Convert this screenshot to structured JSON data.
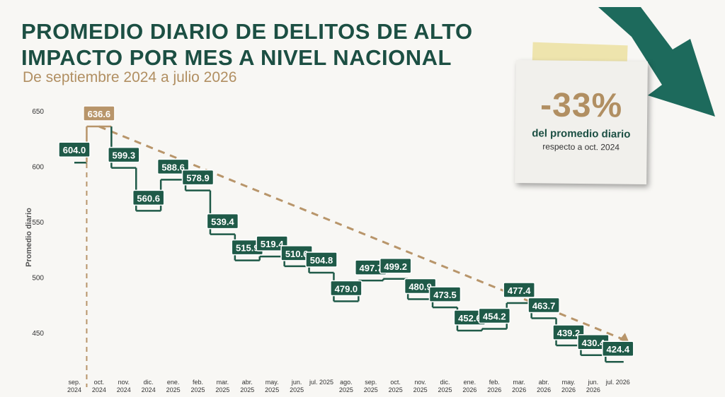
{
  "chart_data": {
    "type": "step",
    "title": "PROMEDIO DIARIO DE DELITOS DE ALTO IMPACTO POR MES A NIVEL NACIONAL",
    "subtitle": "De septiembre 2024 a julio 2026",
    "y_label": "Promedio diario",
    "categories": [
      "sep. 2024",
      "oct. 2024",
      "nov. 2024",
      "dic. 2024",
      "ene. 2025",
      "feb. 2025",
      "mar. 2025",
      "abr. 2025",
      "may. 2025",
      "jun. 2025",
      "jul. 2025",
      "ago. 2025",
      "sep. 2025",
      "oct. 2025",
      "nov. 2025",
      "dic. 2025",
      "ene. 2026",
      "feb. 2026",
      "mar. 2026",
      "abr. 2026",
      "may. 2026",
      "jun. 2026",
      "jul. 2026"
    ],
    "values": [
      604.0,
      636.6,
      599.3,
      560.6,
      588.6,
      578.9,
      539.4,
      515.9,
      519.4,
      510.6,
      504.8,
      479.0,
      497.7,
      499.2,
      480.9,
      473.5,
      452.6,
      454.2,
      477.4,
      463.7,
      439.2,
      430.4,
      424.4
    ],
    "value_labels": [
      "604.0",
      "636.6",
      "599.3",
      "560.6",
      "588.6",
      "578.9",
      "539.4",
      "515.9",
      "519.4",
      "510.6",
      "504.8",
      "479.0",
      "497.7",
      "499.2",
      "480.9",
      "473.5",
      "452.6",
      "454.2",
      "477.4",
      "463.7",
      "439.2",
      "430.4",
      "424.4"
    ],
    "color": "#1f5a48",
    "highlight_color": "#b8956a",
    "ylim": [
      412,
      656
    ],
    "yticks": [
      450,
      500,
      550,
      600,
      650
    ],
    "annotation": {
      "value": "-33%",
      "line1": "del promedio diario",
      "line2": "respecto a oct. 2024"
    }
  }
}
